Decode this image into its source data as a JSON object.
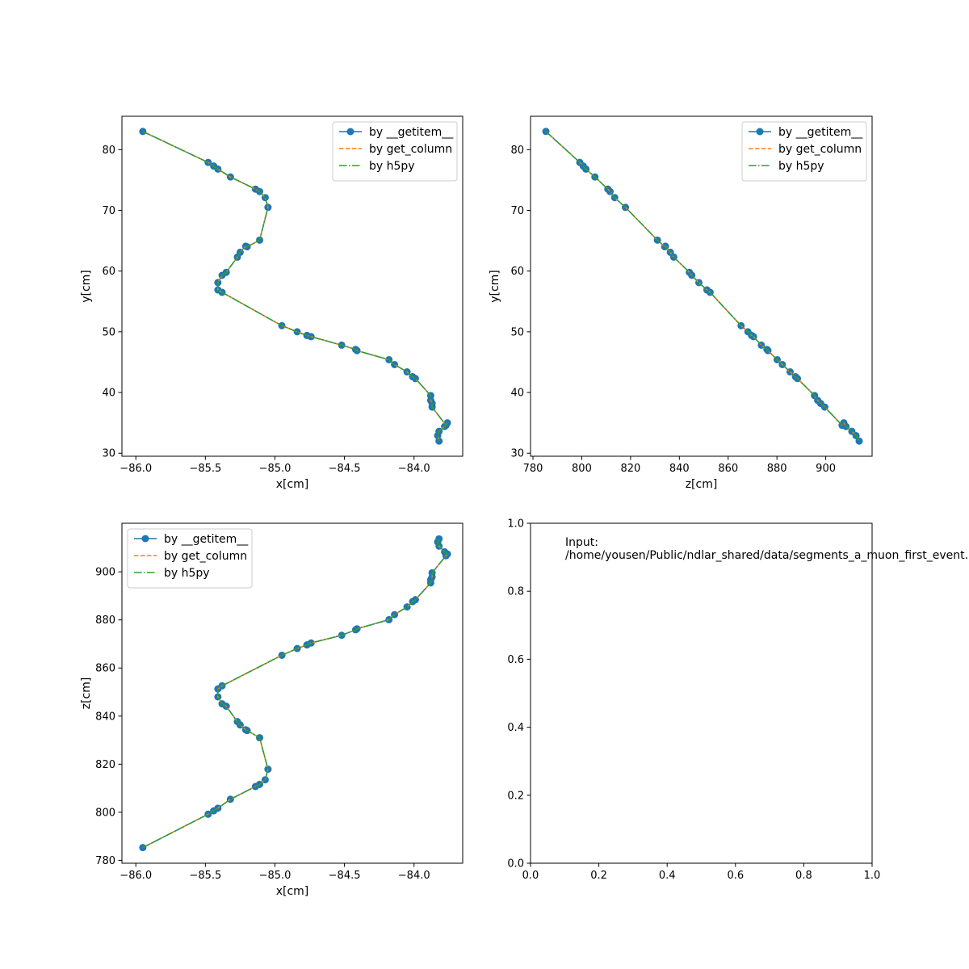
{
  "legend": {
    "entries": [
      "by __getitem__",
      "by get_column",
      "by h5py"
    ]
  },
  "colors": {
    "getitem": "#1f77b4",
    "get_column": "#ff7f0e",
    "h5py": "#2ca02c"
  },
  "annotation": {
    "line1": "Input:",
    "line2": "/home/yousen/Public/ndlar_shared/data/segments_a_muon_first_event.h"
  },
  "chart_data": [
    {
      "type": "line",
      "xlabel": "x[cm]",
      "ylabel": "y[cm]",
      "xlim": [
        -86.1,
        -83.65
      ],
      "ylim": [
        29.5,
        85.5
      ],
      "xticks": [
        -86.0,
        -85.5,
        -85.0,
        -84.5,
        -84.0
      ],
      "xtick_labels": [
        "−86.0",
        "−85.5",
        "−85.0",
        "−84.5",
        "−84.0"
      ],
      "yticks": [
        30,
        40,
        50,
        60,
        70,
        80
      ],
      "ytick_labels": [
        "30",
        "40",
        "50",
        "60",
        "70",
        "80"
      ],
      "legend_loc": "top-right",
      "x": [
        -85.95,
        -85.48,
        -85.44,
        -85.41,
        -85.32,
        -85.14,
        -85.11,
        -85.07,
        -85.05,
        -85.11,
        -85.2,
        -85.21,
        -85.25,
        -85.27,
        -85.35,
        -85.38,
        -85.41,
        -85.41,
        -85.38,
        -84.95,
        -84.84,
        -84.77,
        -84.74,
        -84.52,
        -84.42,
        -84.41,
        -84.18,
        -84.14,
        -84.05,
        -84.01,
        -83.99,
        -83.88,
        -83.88,
        -83.87,
        -83.87,
        -83.77,
        -83.76,
        -83.78,
        -83.82,
        -83.83,
        -83.82
      ],
      "y": [
        83.0,
        77.9,
        77.3,
        76.8,
        75.5,
        73.5,
        73.1,
        72.1,
        70.5,
        65.1,
        64.0,
        64.1,
        63.1,
        62.3,
        59.8,
        59.3,
        58.1,
        56.9,
        56.5,
        51.0,
        50.0,
        49.4,
        49.2,
        47.8,
        47.1,
        46.9,
        45.4,
        44.6,
        43.4,
        42.6,
        42.3,
        39.5,
        38.7,
        38.2,
        37.6,
        34.6,
        35.0,
        34.4,
        33.6,
        32.9,
        32.0
      ]
    },
    {
      "type": "line",
      "xlabel": "z[cm]",
      "ylabel": "y[cm]",
      "xlim": [
        779,
        919
      ],
      "ylim": [
        29.5,
        85.5
      ],
      "xticks": [
        780,
        800,
        820,
        840,
        860,
        880,
        900
      ],
      "xtick_labels": [
        "780",
        "800",
        "820",
        "840",
        "860",
        "880",
        "900"
      ],
      "yticks": [
        30,
        40,
        50,
        60,
        70,
        80
      ],
      "ytick_labels": [
        "30",
        "40",
        "50",
        "60",
        "70",
        "80"
      ],
      "legend_loc": "top-right",
      "x": [
        785.3,
        799.2,
        800.6,
        801.7,
        805.4,
        810.7,
        811.6,
        813.5,
        817.9,
        831.0,
        834.0,
        834.3,
        836.3,
        837.7,
        844.1,
        845.1,
        848.0,
        851.3,
        852.6,
        865.3,
        868.1,
        869.6,
        870.4,
        873.6,
        875.9,
        876.3,
        880.1,
        882.2,
        885.4,
        887.6,
        888.4,
        895.4,
        896.7,
        897.9,
        899.6,
        906.7,
        907.4,
        908.3,
        910.7,
        912.4,
        913.7
      ],
      "y": [
        83.0,
        77.9,
        77.3,
        76.8,
        75.5,
        73.5,
        73.1,
        72.1,
        70.5,
        65.1,
        64.0,
        64.1,
        63.1,
        62.3,
        59.8,
        59.3,
        58.1,
        56.9,
        56.5,
        51.0,
        50.0,
        49.4,
        49.2,
        47.8,
        47.1,
        46.9,
        45.4,
        44.6,
        43.4,
        42.6,
        42.3,
        39.5,
        38.7,
        38.2,
        37.6,
        34.6,
        35.0,
        34.4,
        33.6,
        32.9,
        32.0
      ]
    },
    {
      "type": "line",
      "xlabel": "x[cm]",
      "ylabel": "z[cm]",
      "xlim": [
        -86.1,
        -83.65
      ],
      "ylim": [
        778.8,
        920.2
      ],
      "xticks": [
        -86.0,
        -85.5,
        -85.0,
        -84.5,
        -84.0
      ],
      "xtick_labels": [
        "−86.0",
        "−85.5",
        "−85.0",
        "−84.5",
        "−84.0"
      ],
      "yticks": [
        780,
        800,
        820,
        840,
        860,
        880,
        900
      ],
      "ytick_labels": [
        "780",
        "800",
        "820",
        "840",
        "860",
        "880",
        "900"
      ],
      "legend_loc": "top-left",
      "x": [
        -85.95,
        -85.48,
        -85.44,
        -85.41,
        -85.32,
        -85.14,
        -85.11,
        -85.07,
        -85.05,
        -85.11,
        -85.2,
        -85.21,
        -85.25,
        -85.27,
        -85.35,
        -85.38,
        -85.41,
        -85.41,
        -85.38,
        -84.95,
        -84.84,
        -84.77,
        -84.74,
        -84.52,
        -84.42,
        -84.41,
        -84.18,
        -84.14,
        -84.05,
        -84.01,
        -83.99,
        -83.88,
        -83.88,
        -83.87,
        -83.87,
        -83.77,
        -83.76,
        -83.78,
        -83.82,
        -83.83,
        -83.82
      ],
      "y": [
        785.3,
        799.2,
        800.6,
        801.7,
        805.4,
        810.7,
        811.6,
        813.5,
        817.9,
        831.0,
        834.0,
        834.3,
        836.3,
        837.7,
        844.1,
        845.1,
        848.0,
        851.3,
        852.6,
        865.3,
        868.1,
        869.6,
        870.4,
        873.6,
        875.9,
        876.3,
        880.1,
        882.2,
        885.4,
        887.6,
        888.4,
        895.4,
        896.7,
        897.9,
        899.6,
        906.7,
        907.4,
        908.3,
        910.7,
        912.4,
        913.7
      ]
    },
    {
      "type": "line",
      "xlabel": "",
      "ylabel": "",
      "xlim": [
        0.0,
        1.0
      ],
      "ylim": [
        0.0,
        1.0
      ],
      "xticks": [
        0.0,
        0.2,
        0.4,
        0.6,
        0.8,
        1.0
      ],
      "xtick_labels": [
        "0.0",
        "0.2",
        "0.4",
        "0.6",
        "0.8",
        "1.0"
      ],
      "yticks": [
        0.0,
        0.2,
        0.4,
        0.6,
        0.8,
        1.0
      ],
      "ytick_labels": [
        "0.0",
        "0.2",
        "0.4",
        "0.6",
        "0.8",
        "1.0"
      ],
      "legend_loc": "",
      "x": [],
      "y": []
    }
  ]
}
